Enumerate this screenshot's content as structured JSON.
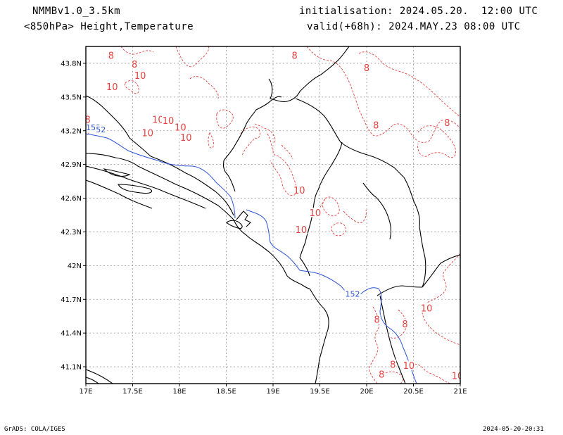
{
  "header": {
    "model": "NMMBv1.0_3.5km",
    "level_fields": "<850hPa> Height,Temperature",
    "initialisation": "initialisation: 2024.05.20.  12:00 UTC",
    "valid": "valid(+68h): 2024.MAY.23 08:00 UTC"
  },
  "map": {
    "lon_range": [
      17,
      21
    ],
    "lat_range": [
      40.95,
      43.95
    ],
    "x_ticks": [
      {
        "value": 17.0,
        "label": "17E"
      },
      {
        "value": 17.5,
        "label": "17.5E"
      },
      {
        "value": 18.0,
        "label": "18E"
      },
      {
        "value": 18.5,
        "label": "18.5E"
      },
      {
        "value": 19.0,
        "label": "19E"
      },
      {
        "value": 19.5,
        "label": "19.5E"
      },
      {
        "value": 20.0,
        "label": "20E"
      },
      {
        "value": 20.5,
        "label": "20.5E"
      },
      {
        "value": 21.0,
        "label": "21E"
      }
    ],
    "y_ticks": [
      {
        "value": 41.1,
        "label": "41.1N"
      },
      {
        "value": 41.4,
        "label": "41.4N"
      },
      {
        "value": 41.7,
        "label": "41.7N"
      },
      {
        "value": 42.0,
        "label": "42N"
      },
      {
        "value": 42.3,
        "label": "42.3N"
      },
      {
        "value": 42.6,
        "label": "42.6N"
      },
      {
        "value": 42.9,
        "label": "42.9N"
      },
      {
        "value": 43.2,
        "label": "43.2N"
      },
      {
        "value": 43.5,
        "label": "43.5N"
      },
      {
        "value": 43.8,
        "label": "43.8N"
      }
    ],
    "colors": {
      "height": "#2b52d6",
      "temperature": "#e64040",
      "border": "#000000",
      "grid": "#9a9a9a"
    },
    "height_label": "152",
    "height_labels": [
      {
        "text": "152",
        "lon": 17.08,
        "lat": 43.23
      },
      {
        "text": "52",
        "lon": 17.16,
        "lat": 43.21
      },
      {
        "text": "152",
        "lon": 19.85,
        "lat": 41.75
      }
    ],
    "temperature_labels": [
      {
        "text": "8",
        "lon": 17.27,
        "lat": 43.87
      },
      {
        "text": "8",
        "lon": 17.52,
        "lat": 43.79
      },
      {
        "text": "8",
        "lon": 19.23,
        "lat": 43.87
      },
      {
        "text": "8",
        "lon": 20.0,
        "lat": 43.76
      },
      {
        "text": "8",
        "lon": 17.02,
        "lat": 43.3
      },
      {
        "text": "10",
        "lon": 17.28,
        "lat": 43.59
      },
      {
        "text": "10",
        "lon": 17.58,
        "lat": 43.69
      },
      {
        "text": "10",
        "lon": 17.77,
        "lat": 43.3
      },
      {
        "text": "10",
        "lon": 17.66,
        "lat": 43.18
      },
      {
        "text": "10",
        "lon": 17.88,
        "lat": 43.29
      },
      {
        "text": "10",
        "lon": 18.01,
        "lat": 43.23
      },
      {
        "text": "10",
        "lon": 18.07,
        "lat": 43.14
      },
      {
        "text": "8",
        "lon": 20.1,
        "lat": 43.25
      },
      {
        "text": "8",
        "lon": 20.86,
        "lat": 43.27
      },
      {
        "text": "10",
        "lon": 19.28,
        "lat": 42.67
      },
      {
        "text": "10",
        "lon": 19.45,
        "lat": 42.47
      },
      {
        "text": "10",
        "lon": 19.3,
        "lat": 42.32
      },
      {
        "text": "10",
        "lon": 20.64,
        "lat": 41.62
      },
      {
        "text": "8",
        "lon": 20.11,
        "lat": 41.52
      },
      {
        "text": "8",
        "lon": 20.41,
        "lat": 41.48
      },
      {
        "text": "8",
        "lon": 20.16,
        "lat": 41.03
      },
      {
        "text": "8",
        "lon": 20.28,
        "lat": 41.12
      },
      {
        "text": "10",
        "lon": 20.45,
        "lat": 41.11
      },
      {
        "text": "10",
        "lon": 20.97,
        "lat": 41.02
      }
    ]
  },
  "footer": {
    "left": "GrADS: COLA/IGES",
    "right": "2024-05-20-20:31"
  }
}
